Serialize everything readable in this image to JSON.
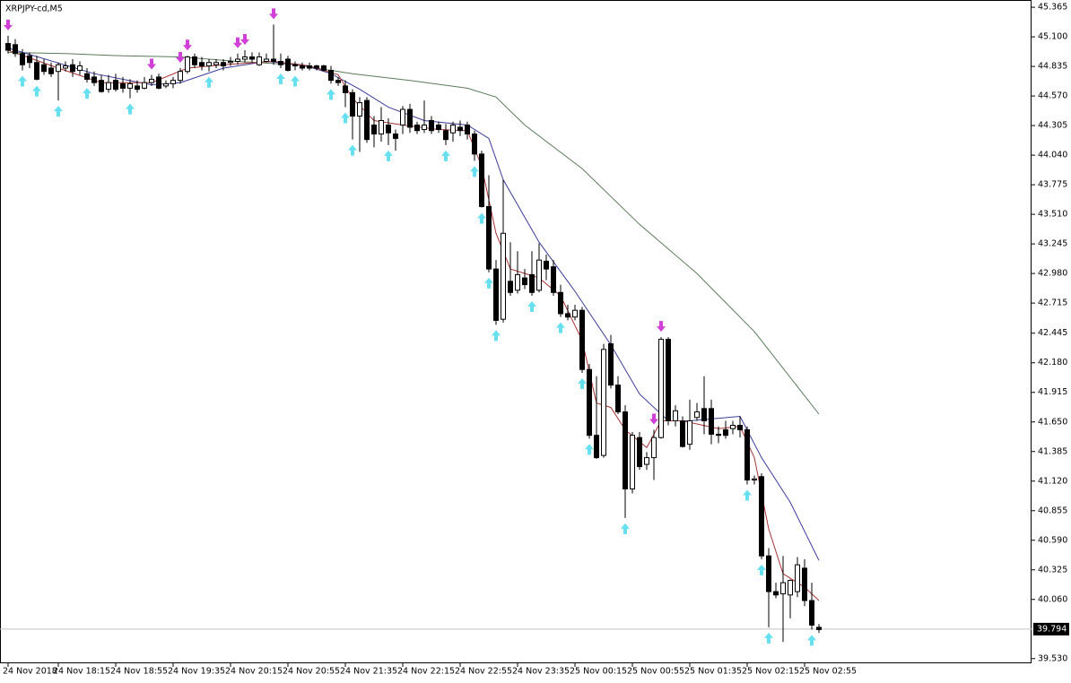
{
  "chart_data": {
    "type": "candlestick",
    "title": "XRPJPY-cd,M5",
    "categories": [
      "24 Nov 2018",
      null,
      null,
      null,
      null,
      null,
      null,
      "24 Nov 18:15",
      null,
      null,
      null,
      null,
      null,
      null,
      null,
      "24 Nov 18:55",
      null,
      null,
      null,
      null,
      null,
      null,
      null,
      "24 Nov 19:35",
      null,
      null,
      null,
      null,
      null,
      null,
      null,
      "24 Nov 20:15",
      null,
      null,
      null,
      null,
      null,
      null,
      null,
      "24 Nov 20:55",
      null,
      null,
      null,
      null,
      null,
      null,
      null,
      "24 Nov 21:35",
      null,
      null,
      null,
      null,
      null,
      null,
      null,
      "24 Nov 22:15",
      null,
      null,
      null,
      null,
      null,
      null,
      null,
      "24 Nov 22:55",
      null,
      null,
      null,
      null,
      null,
      null,
      null,
      "24 Nov 23:35",
      null,
      null,
      null,
      null,
      null,
      null,
      null,
      "25 Nov 00:15",
      null,
      null,
      null,
      null,
      null,
      null,
      null,
      "25 Nov 00:55",
      null,
      null,
      null,
      null,
      null,
      null,
      null,
      "25 Nov 01:35",
      null,
      null,
      null,
      null,
      null,
      null,
      null,
      "25 Nov 02:15",
      null,
      null,
      null,
      null,
      null,
      null,
      null,
      "25 Nov 02:55",
      null,
      null
    ],
    "ohlc": [
      [
        45.04,
        45.11,
        44.95,
        44.98
      ],
      [
        45.03,
        45.08,
        44.92,
        44.95
      ],
      [
        44.95,
        44.99,
        44.8,
        44.85
      ],
      [
        44.93,
        44.96,
        44.82,
        44.87
      ],
      [
        44.87,
        44.93,
        44.71,
        44.72
      ],
      [
        44.85,
        44.9,
        44.76,
        44.79
      ],
      [
        44.82,
        44.87,
        44.74,
        44.77
      ],
      [
        44.79,
        44.87,
        44.53,
        44.85
      ],
      [
        44.82,
        44.88,
        44.79,
        44.84
      ],
      [
        44.85,
        44.9,
        44.74,
        44.79
      ],
      [
        44.8,
        44.88,
        44.76,
        44.84
      ],
      [
        44.77,
        44.82,
        44.69,
        44.72
      ],
      [
        44.74,
        44.79,
        44.66,
        44.69
      ],
      [
        44.71,
        44.76,
        44.6,
        44.61
      ],
      [
        44.63,
        44.76,
        44.6,
        44.69
      ],
      [
        44.71,
        44.77,
        44.61,
        44.63
      ],
      [
        44.68,
        44.74,
        44.6,
        44.64
      ],
      [
        44.64,
        44.72,
        44.55,
        44.68
      ],
      [
        44.66,
        44.71,
        44.6,
        44.63
      ],
      [
        44.64,
        44.74,
        44.63,
        44.69
      ],
      [
        44.69,
        44.76,
        44.66,
        44.72
      ],
      [
        44.74,
        44.77,
        44.63,
        44.64
      ],
      [
        44.66,
        44.71,
        44.64,
        44.68
      ],
      [
        44.68,
        44.74,
        44.64,
        44.71
      ],
      [
        44.71,
        44.82,
        44.68,
        44.79
      ],
      [
        44.79,
        44.93,
        44.77,
        44.92
      ],
      [
        44.92,
        44.95,
        44.82,
        44.85
      ],
      [
        44.87,
        44.92,
        44.8,
        44.84
      ],
      [
        44.84,
        44.9,
        44.79,
        44.87
      ],
      [
        44.85,
        44.9,
        44.82,
        44.87
      ],
      [
        44.87,
        44.9,
        44.8,
        44.84
      ],
      [
        44.87,
        44.92,
        44.84,
        44.88
      ],
      [
        44.88,
        44.95,
        44.85,
        44.9
      ],
      [
        44.9,
        44.98,
        44.87,
        44.92
      ],
      [
        44.92,
        44.96,
        44.87,
        44.9
      ],
      [
        44.85,
        44.96,
        44.84,
        44.92
      ],
      [
        44.88,
        44.95,
        44.87,
        44.9
      ],
      [
        44.9,
        45.21,
        44.85,
        44.88
      ],
      [
        44.88,
        44.95,
        44.82,
        44.85
      ],
      [
        44.9,
        44.93,
        44.79,
        44.8
      ],
      [
        44.85,
        44.88,
        44.8,
        44.84
      ],
      [
        44.84,
        44.87,
        44.8,
        44.82
      ],
      [
        44.84,
        44.87,
        44.8,
        44.82
      ],
      [
        44.84,
        44.85,
        44.8,
        44.82
      ],
      [
        44.84,
        44.85,
        44.79,
        44.8
      ],
      [
        44.8,
        44.84,
        44.68,
        44.71
      ],
      [
        44.71,
        44.74,
        44.66,
        44.69
      ],
      [
        44.66,
        44.71,
        44.47,
        44.6
      ],
      [
        44.6,
        44.63,
        44.18,
        44.39
      ],
      [
        44.39,
        44.56,
        44.07,
        44.51
      ],
      [
        44.53,
        44.56,
        44.15,
        44.18
      ],
      [
        44.31,
        44.39,
        44.11,
        44.23
      ],
      [
        44.23,
        44.47,
        44.16,
        44.35
      ],
      [
        44.31,
        44.37,
        44.13,
        44.24
      ],
      [
        44.23,
        44.27,
        44.08,
        44.19
      ],
      [
        44.31,
        44.48,
        44.23,
        44.45
      ],
      [
        44.45,
        44.5,
        44.24,
        44.29
      ],
      [
        44.31,
        44.34,
        44.23,
        44.26
      ],
      [
        44.27,
        44.53,
        44.24,
        44.31
      ],
      [
        44.35,
        44.39,
        44.23,
        44.26
      ],
      [
        44.31,
        44.34,
        44.24,
        44.27
      ],
      [
        44.26,
        44.32,
        44.13,
        44.18
      ],
      [
        44.24,
        44.34,
        44.16,
        44.31
      ],
      [
        44.29,
        44.35,
        44.21,
        44.26
      ],
      [
        44.31,
        44.34,
        44.18,
        44.23
      ],
      [
        44.23,
        44.26,
        43.99,
        44.05
      ],
      [
        44.05,
        44.08,
        43.57,
        43.58
      ],
      [
        43.58,
        43.86,
        42.99,
        43.02
      ],
      [
        43.02,
        43.1,
        42.52,
        42.56
      ],
      [
        42.57,
        43.82,
        42.54,
        43.34
      ],
      [
        42.91,
        43.26,
        42.78,
        42.81
      ],
      [
        42.83,
        43.18,
        42.8,
        42.97
      ],
      [
        42.94,
        43.02,
        42.84,
        42.88
      ],
      [
        42.97,
        43.18,
        42.78,
        42.81
      ],
      [
        42.83,
        43.25,
        42.81,
        43.1
      ],
      [
        43.09,
        43.15,
        42.92,
        43.02
      ],
      [
        43.04,
        43.1,
        42.78,
        42.81
      ],
      [
        42.81,
        42.88,
        42.59,
        42.62
      ],
      [
        42.62,
        42.7,
        42.56,
        42.59
      ],
      [
        42.59,
        42.7,
        42.56,
        42.65
      ],
      [
        42.65,
        42.68,
        42.09,
        42.12
      ],
      [
        42.12,
        42.17,
        41.5,
        41.53
      ],
      [
        41.53,
        42.06,
        41.32,
        41.33
      ],
      [
        41.35,
        42.35,
        41.33,
        42.3
      ],
      [
        42.35,
        42.43,
        41.95,
        41.98
      ],
      [
        41.98,
        42.06,
        41.72,
        41.74
      ],
      [
        41.74,
        41.8,
        40.79,
        41.05
      ],
      [
        41.05,
        41.56,
        41.01,
        41.53
      ],
      [
        41.51,
        41.56,
        41.22,
        41.25
      ],
      [
        41.27,
        41.38,
        41.22,
        41.33
      ],
      [
        41.33,
        41.58,
        41.13,
        41.51
      ],
      [
        41.51,
        42.41,
        41.5,
        42.39
      ],
      [
        42.39,
        42.41,
        41.62,
        41.66
      ],
      [
        41.66,
        41.8,
        41.61,
        41.75
      ],
      [
        41.66,
        41.7,
        41.42,
        41.43
      ],
      [
        41.45,
        41.85,
        41.4,
        41.66
      ],
      [
        41.69,
        41.82,
        41.66,
        41.74
      ],
      [
        41.77,
        42.06,
        41.54,
        41.66
      ],
      [
        41.77,
        41.85,
        41.45,
        41.54
      ],
      [
        41.54,
        41.61,
        41.46,
        41.53
      ],
      [
        41.58,
        41.66,
        41.5,
        41.53
      ],
      [
        41.59,
        41.66,
        41.54,
        41.62
      ],
      [
        41.62,
        41.7,
        41.51,
        41.58
      ],
      [
        41.58,
        41.61,
        41.09,
        41.13
      ],
      [
        41.13,
        41.17,
        41.09,
        41.14
      ],
      [
        41.16,
        41.19,
        40.42,
        40.45
      ],
      [
        40.45,
        40.52,
        39.81,
        40.13
      ],
      [
        40.13,
        40.21,
        40.07,
        40.1
      ],
      [
        40.11,
        40.45,
        39.68,
        40.21
      ],
      [
        40.1,
        40.24,
        39.89,
        40.23
      ],
      [
        40.13,
        40.44,
        40.08,
        40.37
      ],
      [
        40.34,
        40.42,
        40.0,
        40.05
      ],
      [
        40.05,
        40.21,
        39.79,
        39.83
      ],
      [
        39.81,
        39.84,
        39.76,
        39.79
      ]
    ],
    "series": [
      {
        "color": "#5a7a5a",
        "x": [
          0,
          8,
          16,
          24,
          32,
          40,
          48,
          56,
          64,
          68,
          72,
          80,
          88,
          96,
          104,
          113
        ],
        "values": [
          44.96,
          44.95,
          44.93,
          44.92,
          44.88,
          44.85,
          44.77,
          44.71,
          44.64,
          44.56,
          44.31,
          43.92,
          43.42,
          42.98,
          42.46,
          41.72
        ]
      },
      {
        "color": "#3a3a9a",
        "x": [
          0,
          12,
          20,
          24,
          30,
          36,
          41,
          45,
          49,
          53,
          58,
          64,
          67,
          69,
          74,
          79,
          84,
          88,
          92,
          95,
          102,
          105,
          109,
          113
        ],
        "values": [
          45.0,
          44.77,
          44.67,
          44.69,
          44.82,
          44.88,
          44.85,
          44.77,
          44.63,
          44.47,
          44.35,
          44.31,
          44.19,
          43.82,
          43.26,
          42.82,
          42.34,
          41.9,
          41.66,
          41.66,
          41.7,
          41.33,
          40.93,
          40.41
        ]
      },
      {
        "color": "#a83232",
        "x": [
          0,
          7,
          13,
          20,
          25,
          30,
          37,
          42,
          46,
          48,
          51,
          55,
          60,
          64,
          66,
          68,
          70,
          74,
          77,
          80,
          82,
          84,
          86,
          89,
          91,
          94,
          99,
          102,
          104,
          106,
          108,
          111,
          113
        ],
        "values": [
          44.98,
          44.82,
          44.69,
          44.69,
          44.82,
          44.85,
          44.88,
          44.84,
          44.76,
          44.55,
          44.35,
          44.31,
          44.27,
          44.26,
          43.94,
          43.34,
          43.02,
          42.94,
          42.78,
          42.38,
          41.82,
          41.78,
          41.58,
          41.42,
          41.66,
          41.66,
          41.59,
          41.61,
          41.33,
          40.69,
          40.29,
          40.17,
          40.05
        ]
      }
    ],
    "up_signals": [
      2,
      4,
      7,
      11,
      17,
      28,
      38,
      40,
      45,
      47,
      48,
      53,
      61,
      65,
      66,
      67,
      68,
      73,
      77,
      80,
      81,
      86,
      103,
      105,
      106,
      112
    ],
    "down_signals": [
      0,
      20,
      24,
      25,
      32,
      33,
      37,
      90,
      91
    ],
    "up_color": "#66e0f0",
    "down_color": "#d040d8",
    "last_price": 39.794,
    "ylim": [
      39.488,
      45.43
    ],
    "yticks": [
      45.365,
      {
        "value": 45.1,
        "label": "45.100"
      },
      44.835,
      {
        "value": 44.57,
        "label": "44.570"
      },
      44.305,
      {
        "value": 44.04,
        "label": "44.040"
      },
      43.775,
      {
        "value": 43.51,
        "label": "43.510"
      },
      43.245,
      {
        "value": 42.98,
        "label": "42.980"
      },
      42.715,
      42.445,
      {
        "value": 42.18,
        "label": "42.180"
      },
      41.915,
      {
        "value": 41.65,
        "label": "41.650"
      },
      41.385,
      {
        "value": 41.12,
        "label": "41.120"
      },
      40.855,
      {
        "value": 40.59,
        "label": "40.590"
      },
      40.325,
      {
        "value": 40.06,
        "label": "40.060"
      },
      {
        "value": 39.53,
        "label": "39.530"
      }
    ]
  }
}
